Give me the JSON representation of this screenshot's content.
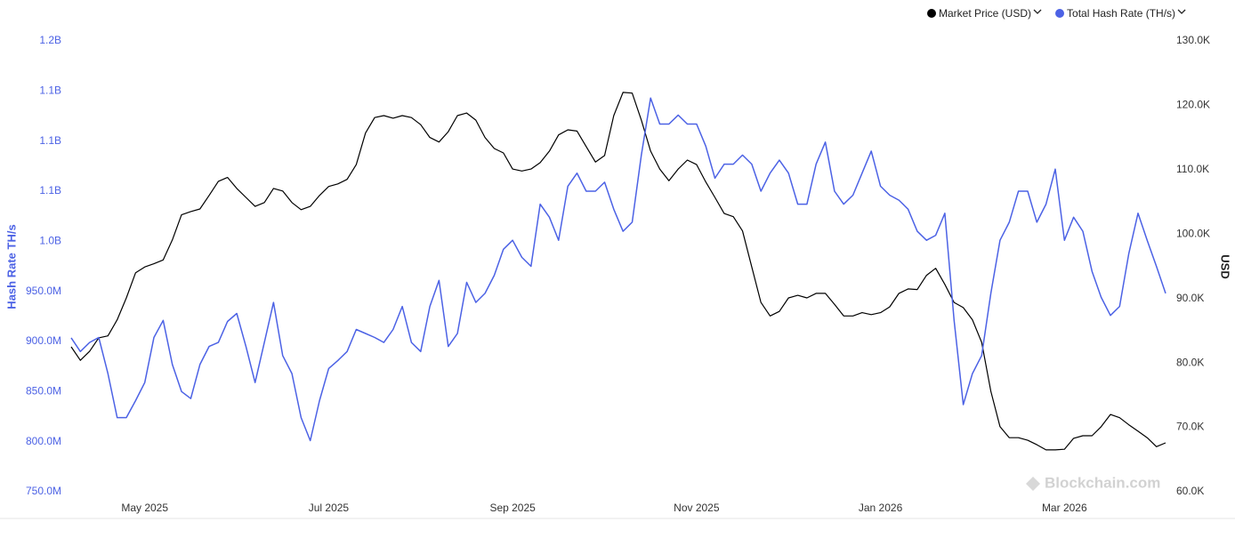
{
  "chart_data": {
    "type": "line",
    "y_label": "Hash Rate TH/s",
    "y2_label": "USD",
    "watermark": "Blockchain.com",
    "categories": [
      null,
      null,
      null,
      null,
      null,
      null,
      null,
      null,
      "May 2025",
      null,
      null,
      null,
      null,
      null,
      null,
      null,
      null,
      null,
      null,
      null,
      null,
      null,
      null,
      null,
      null,
      null,
      null,
      null,
      "Jul 2025",
      null,
      null,
      null,
      null,
      null,
      null,
      null,
      null,
      null,
      null,
      null,
      null,
      null,
      null,
      null,
      null,
      null,
      null,
      null,
      "Sep 2025",
      null,
      null,
      null,
      null,
      null,
      null,
      null,
      null,
      null,
      null,
      null,
      null,
      null,
      null,
      null,
      null,
      null,
      null,
      null,
      "Nov 2025",
      null,
      null,
      null,
      null,
      null,
      null,
      null,
      null,
      null,
      null,
      null,
      null,
      null,
      null,
      null,
      null,
      null,
      null,
      null,
      "Jan 2026",
      null,
      null,
      null,
      null,
      null,
      null,
      null,
      null,
      null,
      null,
      null,
      null,
      null,
      null,
      null,
      null,
      null,
      null,
      null,
      "Mar 2026",
      null,
      null,
      null,
      null,
      null,
      null,
      null,
      null,
      null,
      null,
      null
    ],
    "series": [
      {
        "name": "Market Price (USD)",
        "color": "#000000",
        "axis": "y2",
        "values": [
          82500.0,
          80400.0,
          81800.0,
          83900.0,
          84200.0,
          86700.0,
          90100.0,
          94000.0,
          94900.0,
          95400.0,
          96000.0,
          99100.0,
          103000.0,
          103500.0,
          103900.0,
          106000.0,
          108200.0,
          108800.0,
          107100.0,
          105700.0,
          104300.0,
          104900.0,
          107100.0,
          106700.0,
          104900.0,
          103800.0,
          104300.0,
          106000.0,
          107400.0,
          107800.0,
          108500.0,
          110800.0,
          115700.0,
          118100.0,
          118400.0,
          118000.0,
          118400.0,
          118100.0,
          117000.0,
          115000.0,
          114300.0,
          115900.0,
          118400.0,
          118800.0,
          117700.0,
          115000.0,
          113300.0,
          112600.0,
          110100.0,
          109800.0,
          110100.0,
          111100.0,
          112900.0,
          115400.0,
          116200.0,
          116000.0,
          113600.0,
          111200.0,
          112200.0,
          118400.0,
          122000.0,
          121900.0,
          117700.0,
          112900.0,
          110100.0,
          108300.0,
          110100.0,
          111500.0,
          110800.0,
          108100.0,
          105700.0,
          103200.0,
          102700.0,
          100500.0,
          94900.0,
          89400.0,
          87300.0,
          88000.0,
          90100.0,
          90500.0,
          90100.0,
          90800.0,
          90800.0,
          89100.0,
          87300.0,
          87300.0,
          87800.0,
          87500.0,
          87800.0,
          88700.0,
          90800.0,
          91500.0,
          91400.0,
          93600.0,
          94700.0,
          92200.0,
          89400.0,
          88600.0,
          86700.0,
          83200.0,
          75600.0,
          70100.0,
          68400.0,
          68400.0,
          68000.0,
          67300.0,
          66500.0,
          66500.0,
          66600.0,
          68300.0,
          68700.0,
          68700.0,
          70100.0,
          72000.0,
          71500.0,
          70400.0,
          69400.0,
          68400.0,
          67000.0,
          67600.0
        ]
      },
      {
        "name": "Total Hash Rate (TH/s)",
        "color": "#4c62e5",
        "values": [
          903600000.0,
          890000000.0,
          899000000.0,
          904000000.0,
          868000000.0,
          824000000.0,
          824000000.0,
          841000000.0,
          859000000.0,
          904000000.0,
          921000000.0,
          877000000.0,
          850000000.0,
          843000000.0,
          877000000.0,
          895000000.0,
          899000000.0,
          920000000.0,
          928000000.0,
          895000000.0,
          859000000.0,
          899000000.0,
          939000000.0,
          886000000.0,
          868000000.0,
          824000000.0,
          801000000.0,
          841000000.0,
          873000000.0,
          881000000.0,
          890000000.0,
          912000000.0,
          908000000.0,
          904000000.0,
          899000000.0,
          912000000.0,
          935000000.0,
          899000000.0,
          890000000.0,
          935000000.0,
          961000000.0,
          895000000.0,
          908000000.0,
          959000000.0,
          939000000.0,
          948000000.0,
          966000000.0,
          992000000.0,
          1001000000.0,
          984000000.0,
          975000000.0,
          1037000000.0,
          1024000000.0,
          1001000000.0,
          1055000000.0,
          1068000000.0,
          1050000000.0,
          1050000000.0,
          1059000000.0,
          1032000000.0,
          1010000000.0,
          1019000000.0,
          1086000000.0,
          1143000000.0,
          1117000000.0,
          1117000000.0,
          1126000000.0,
          1117000000.0,
          1117000000.0,
          1095000000.0,
          1063000000.0,
          1077000000.0,
          1077000000.0,
          1086000000.0,
          1077000000.0,
          1050000000.0,
          1068000000.0,
          1081000000.0,
          1068000000.0,
          1037000000.0,
          1037000000.0,
          1077000000.0,
          1099000000.0,
          1050000000.0,
          1037000000.0,
          1046000000.0,
          1068000000.0,
          1090000000.0,
          1055000000.0,
          1046000000.0,
          1041000000.0,
          1032000000.0,
          1010000000.0,
          1001000000.0,
          1006000000.0,
          1028000000.0,
          921000000.0,
          837000000.0,
          868000000.0,
          886000000.0,
          948000000.0,
          1001000000.0,
          1019000000.0,
          1050000000.0,
          1050000000.0,
          1019000000.0,
          1037000000.0,
          1072000000.0,
          1001000000.0,
          1024000000.0,
          1010000000.0,
          970000000.0,
          944000000.0,
          926000000.0,
          935000000.0,
          988000000.0,
          1028000000.0,
          1001000000.0,
          975000000.0,
          948000000.0
        ]
      }
    ],
    "ylim": [
      750000000,
      1200000000
    ],
    "yticks": [
      {
        "value": 750000000,
        "label": "750.0M"
      },
      {
        "value": 800000000,
        "label": "800.0M"
      },
      {
        "value": 850000000,
        "label": "850.0M"
      },
      {
        "value": 900000000,
        "label": "900.0M"
      },
      {
        "value": 950000000,
        "label": "950.0M"
      },
      {
        "value": 1000000000,
        "label": "1.0B"
      },
      {
        "value": 1050000000,
        "label": "1.1B"
      },
      {
        "value": 1100000000,
        "label": "1.1B"
      },
      {
        "value": 1150000000,
        "label": "1.1B"
      },
      {
        "value": 1200000000,
        "label": "1.2B"
      }
    ],
    "y2lim": [
      60000,
      130000
    ],
    "y2ticks": [
      {
        "value": 60000,
        "label": "60.0K"
      },
      {
        "value": 70000,
        "label": "70.0K"
      },
      {
        "value": 80000,
        "label": "80.0K"
      },
      {
        "value": 90000,
        "label": "90.0K"
      },
      {
        "value": 100000,
        "label": "100.0K"
      },
      {
        "value": 110000,
        "label": "110.0K"
      },
      {
        "value": 120000,
        "label": "120.0K"
      },
      {
        "value": 130000,
        "label": "130.0K"
      }
    ],
    "grid": false,
    "legend": "top-right"
  }
}
